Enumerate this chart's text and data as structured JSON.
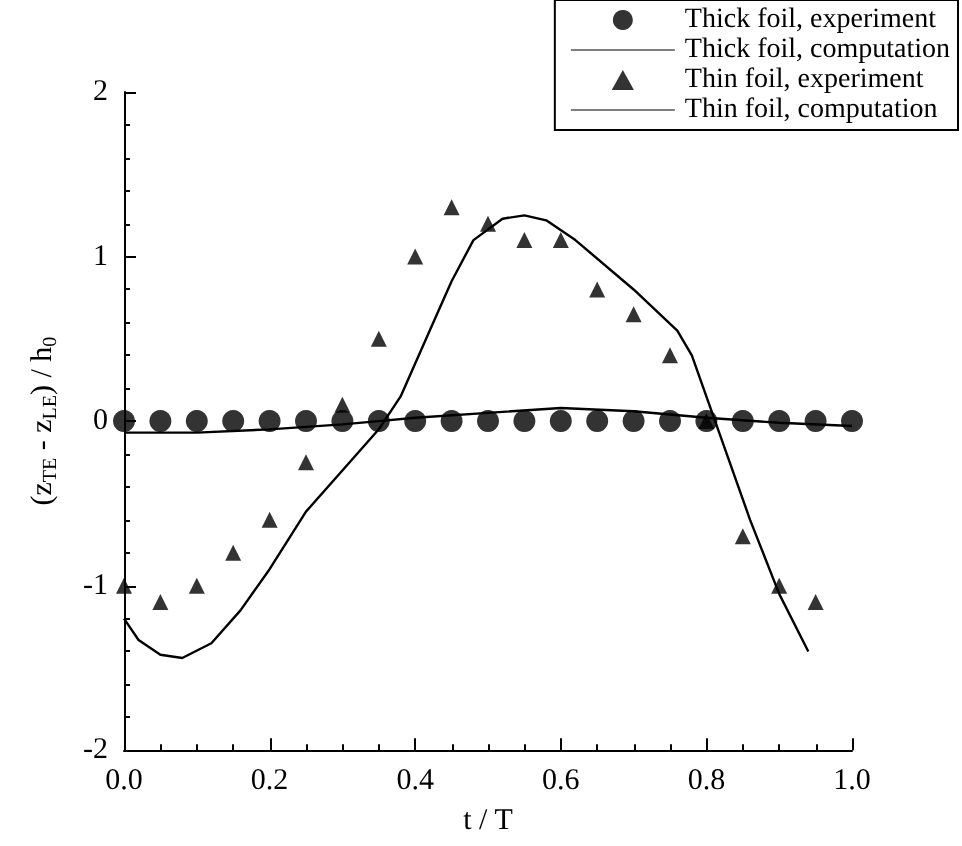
{
  "chart_data": {
    "type": "line",
    "xlabel": "t / T",
    "ylabel": "(z$_{TE}$ - z$_{LE}$) / h$_{0}$",
    "xlim": [
      0,
      1
    ],
    "xticks": [
      {
        "value": 0,
        "label": "0.0"
      },
      0.2,
      0.4,
      0.6,
      0.8,
      {
        "value": 1,
        "label": "1.0"
      }
    ],
    "ylim": [
      -2,
      2
    ],
    "yticks": [
      -2,
      -1,
      0,
      1,
      2
    ],
    "grid": false,
    "legend": "top right",
    "series": [
      {
        "name": "Thick foil, experiment",
        "type": "scatter",
        "marker": "circle",
        "color": "#000000",
        "x": [
          0,
          0.05,
          0.1,
          0.15,
          0.2,
          0.25,
          0.3,
          0.35,
          0.4,
          0.45,
          0.5,
          0.55,
          0.6,
          0.65,
          0.7,
          0.75,
          0.8,
          0.85,
          0.9,
          0.95,
          1.0
        ],
        "values": [
          0,
          0,
          0,
          0,
          0,
          0,
          0,
          0,
          0,
          0,
          0,
          0,
          0,
          0,
          0,
          0,
          0,
          0,
          0,
          0,
          0
        ]
      },
      {
        "name": "Thick foil, computation",
        "marker": "none",
        "color": "#000000",
        "x": [
          0,
          0.1,
          0.2,
          0.3,
          0.35,
          0.4,
          0.5,
          0.6,
          0.7,
          0.8,
          0.9,
          1.0
        ],
        "values": [
          -0.07,
          -0.07,
          -0.05,
          -0.02,
          0,
          0.02,
          0.05,
          0.08,
          0.06,
          0.02,
          -0.01,
          -0.03
        ]
      },
      {
        "name": "Thin foil, experiment",
        "type": "scatter",
        "marker": "triangle",
        "color": "#000000",
        "x": [
          0,
          0.05,
          0.1,
          0.15,
          0.2,
          0.25,
          0.3,
          0.35,
          0.4,
          0.45,
          0.5,
          0.55,
          0.6,
          0.65,
          0.7,
          0.75,
          0.8,
          0.85,
          0.9,
          0.95
        ],
        "values": [
          -1.0,
          -1.1,
          -1.0,
          -0.8,
          -0.6,
          -0.25,
          0.1,
          0.5,
          1.0,
          1.3,
          1.2,
          1.1,
          1.1,
          0.8,
          0.65,
          0.4,
          0.0,
          -0.7,
          -1.0,
          -1.1
        ]
      },
      {
        "name": "Thin foil, computation",
        "marker": "none",
        "color": "#000000",
        "x": [
          0,
          0.02,
          0.05,
          0.08,
          0.12,
          0.16,
          0.2,
          0.25,
          0.3,
          0.35,
          0.38,
          0.42,
          0.45,
          0.48,
          0.52,
          0.55,
          0.58,
          0.62,
          0.7,
          0.76,
          0.78,
          0.82,
          0.86,
          0.9,
          0.94
        ],
        "values": [
          -1.2,
          -1.33,
          -1.42,
          -1.44,
          -1.35,
          -1.15,
          -0.9,
          -0.55,
          -0.3,
          -0.05,
          0.15,
          0.55,
          0.85,
          1.1,
          1.23,
          1.25,
          1.22,
          1.1,
          0.8,
          0.55,
          0.4,
          -0.1,
          -0.6,
          -1.05,
          -1.4
        ]
      }
    ]
  }
}
